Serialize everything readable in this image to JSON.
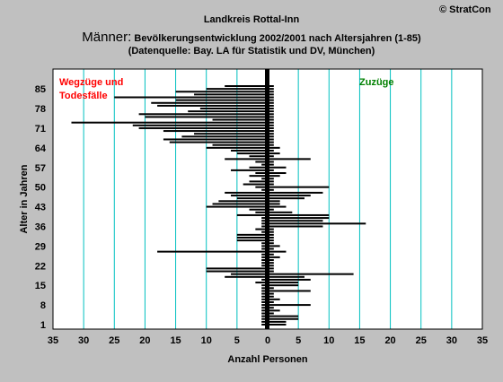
{
  "copyright": "© StratCon",
  "header": {
    "region": "Landkreis Rottal-Inn",
    "gender": "Männer:",
    "subtitle": "Bevölkerungsentwicklung 2002/2001 nach Altersjahren (1-85)",
    "source": "(Datenquelle: Bay. LA für Statistik und DV, München)"
  },
  "chart_data": {
    "type": "bar",
    "orientation": "horizontal",
    "xlabel": "Anzahl Personen",
    "ylabel": "Alter in Jahren",
    "xlim": [
      -35,
      35
    ],
    "ylim": [
      1,
      86
    ],
    "xticks": [
      -35,
      -30,
      -25,
      -20,
      -15,
      -10,
      -5,
      0,
      5,
      10,
      15,
      20,
      25,
      30,
      35
    ],
    "xtick_labels": [
      "35",
      "30",
      "25",
      "20",
      "15",
      "10",
      "5",
      "0",
      "5",
      "10",
      "15",
      "20",
      "25",
      "30",
      "35"
    ],
    "yticks": [
      1,
      8,
      15,
      22,
      29,
      36,
      43,
      50,
      57,
      64,
      71,
      78,
      85
    ],
    "grid": "vertical",
    "annotation_left": "Wegzüge und Todesfälle",
    "annotation_left_lines": [
      "Wegzüge und",
      "Todesfälle"
    ],
    "annotation_right": "Zuzüge",
    "colors": {
      "background": "#c0c0c0",
      "plot": "#ffffff",
      "gridline": "#00c0c0",
      "bar": "#000000",
      "left_label": "#ff0000",
      "right_label": "#008000"
    },
    "ages": [
      1,
      2,
      3,
      4,
      5,
      6,
      7,
      8,
      9,
      10,
      11,
      12,
      13,
      14,
      15,
      16,
      17,
      18,
      19,
      20,
      21,
      22,
      23,
      24,
      25,
      26,
      27,
      28,
      29,
      30,
      31,
      32,
      33,
      34,
      35,
      36,
      37,
      38,
      39,
      40,
      41,
      42,
      43,
      44,
      45,
      46,
      47,
      48,
      49,
      50,
      51,
      52,
      53,
      54,
      55,
      56,
      57,
      58,
      59,
      60,
      61,
      62,
      63,
      64,
      65,
      66,
      67,
      68,
      69,
      70,
      71,
      72,
      73,
      74,
      75,
      76,
      77,
      78,
      79,
      80,
      81,
      82,
      83,
      84,
      85,
      86
    ],
    "series": [
      {
        "values_out": [
          -1,
          -1,
          -1,
          -1,
          -1,
          -1,
          -1,
          -1,
          -1,
          -1,
          -1,
          -1,
          -1,
          -1,
          -1,
          -2,
          -1,
          -7,
          -6,
          -10,
          -10,
          -1,
          -1,
          -1,
          -1,
          -1,
          -18,
          -1,
          -1,
          -1,
          -5,
          -5,
          -5,
          -1,
          -2,
          -1,
          -1,
          -1,
          -1,
          -5,
          -2,
          -3,
          -10,
          -9,
          -8,
          -5,
          -6,
          -7,
          -1,
          -2,
          -4,
          -3,
          -1,
          -3,
          -2,
          -6,
          -3,
          -1,
          -2,
          -7,
          -3,
          -5,
          -6,
          -10,
          -9,
          -16,
          -17,
          -14,
          -12,
          -17,
          -21,
          -22,
          -32,
          -9,
          -20,
          -21,
          -13,
          -11,
          -18,
          -19,
          -15,
          -25,
          -12,
          -15,
          -10,
          -7
        ]
      },
      {
        "values_in": [
          3,
          3,
          5,
          5,
          1,
          2,
          1,
          7,
          1,
          2,
          1,
          1,
          7,
          1,
          5,
          5,
          7,
          6,
          14,
          1,
          1,
          1,
          1,
          1,
          2,
          1,
          3,
          1,
          2,
          1,
          1,
          1,
          1,
          1,
          1,
          9,
          16,
          9,
          10,
          10,
          4,
          1,
          3,
          2,
          2,
          6,
          7,
          9,
          1,
          10,
          1,
          1,
          1,
          2,
          3,
          1,
          3,
          1,
          1,
          7,
          1,
          2,
          1,
          2,
          1,
          1,
          1,
          1,
          1,
          1,
          1,
          1,
          1,
          1,
          1,
          1,
          1,
          1,
          1,
          1,
          1,
          1,
          1,
          1,
          1,
          1
        ]
      }
    ]
  }
}
